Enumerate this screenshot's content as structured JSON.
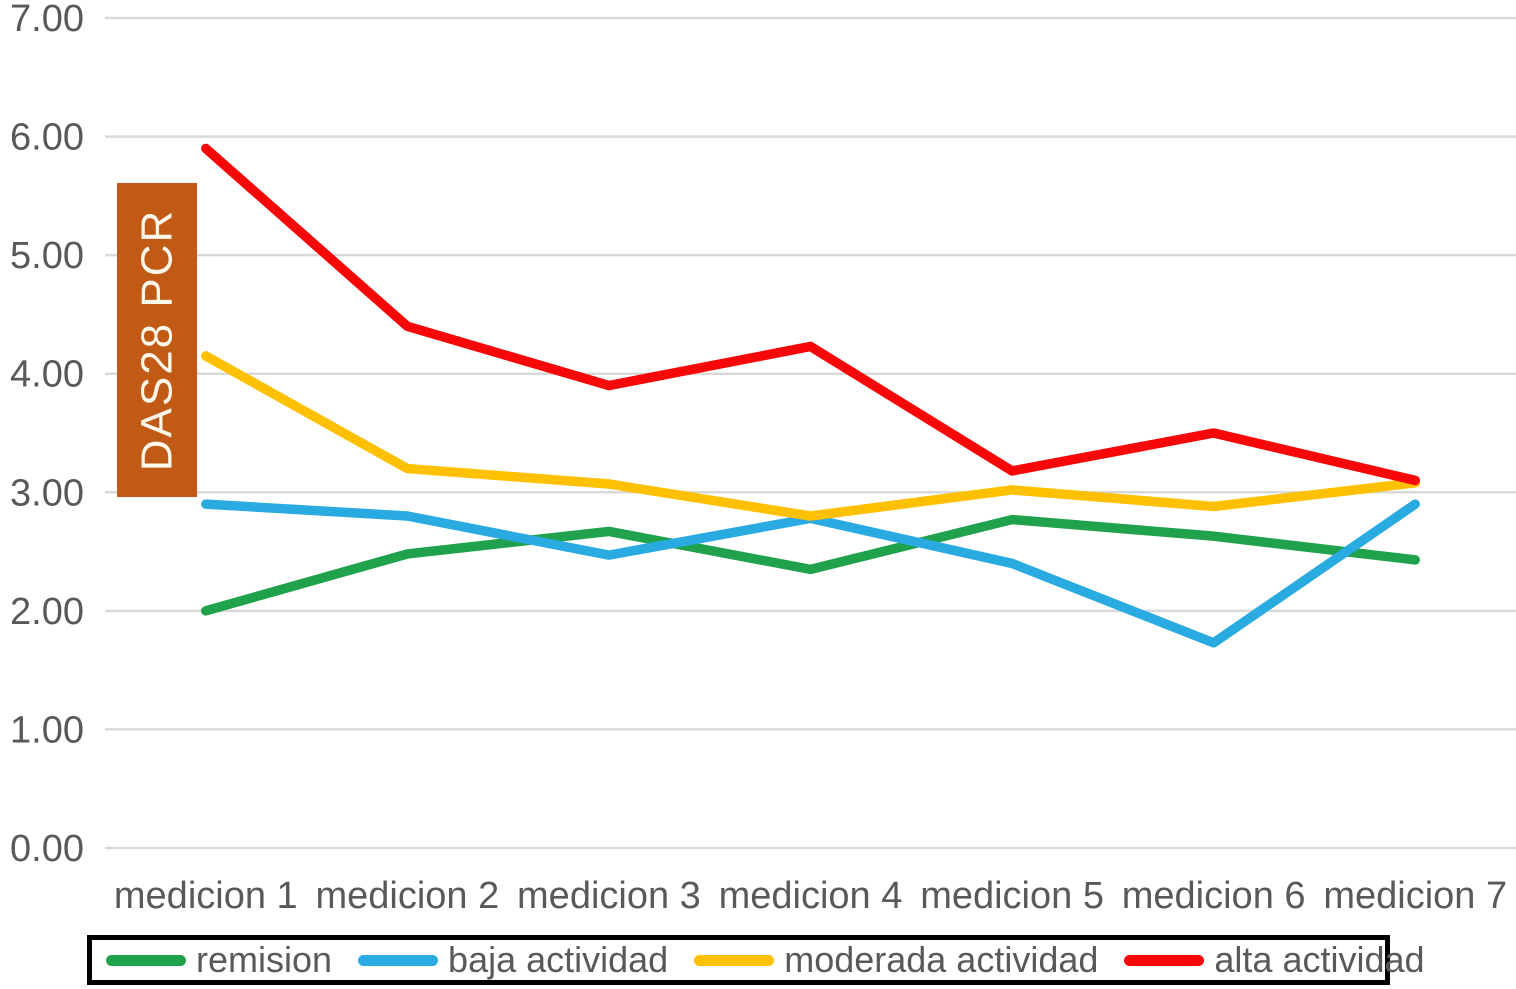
{
  "chart_data": {
    "type": "line",
    "title": "",
    "xlabel": "",
    "ylabel": "DAS28 PCR",
    "ylim": [
      0,
      7
    ],
    "grid": true,
    "legend_position": "bottom",
    "y_ticks": [
      "0.00",
      "1.00",
      "2.00",
      "3.00",
      "4.00",
      "5.00",
      "6.00",
      "7.00"
    ],
    "categories": [
      "medicion 1",
      "medicion 2",
      "medicion 3",
      "medicion 4",
      "medicion 5",
      "medicion 6",
      "medicion 7"
    ],
    "series": [
      {
        "name": "remision",
        "color": "#1FA24B",
        "values": [
          2.0,
          2.48,
          2.67,
          2.35,
          2.77,
          2.63,
          2.43
        ]
      },
      {
        "name": "baja actividad",
        "color": "#29ABE2",
        "values": [
          2.9,
          2.8,
          2.47,
          2.78,
          2.4,
          1.73,
          2.9
        ]
      },
      {
        "name": "moderada actividad",
        "color": "#FFC000",
        "values": [
          4.15,
          3.2,
          3.07,
          2.8,
          3.02,
          2.88,
          3.08
        ]
      },
      {
        "name": "alta actividad",
        "color": "#F70707",
        "values": [
          5.9,
          4.4,
          3.9,
          4.23,
          3.18,
          3.5,
          3.1
        ]
      }
    ],
    "colors": {
      "grid": "#D9D9D9",
      "axis_text": "#595959",
      "ylabel_bg": "#C05A15",
      "ylabel_text": "#FDF7EA",
      "legend_border": "#000000"
    }
  }
}
